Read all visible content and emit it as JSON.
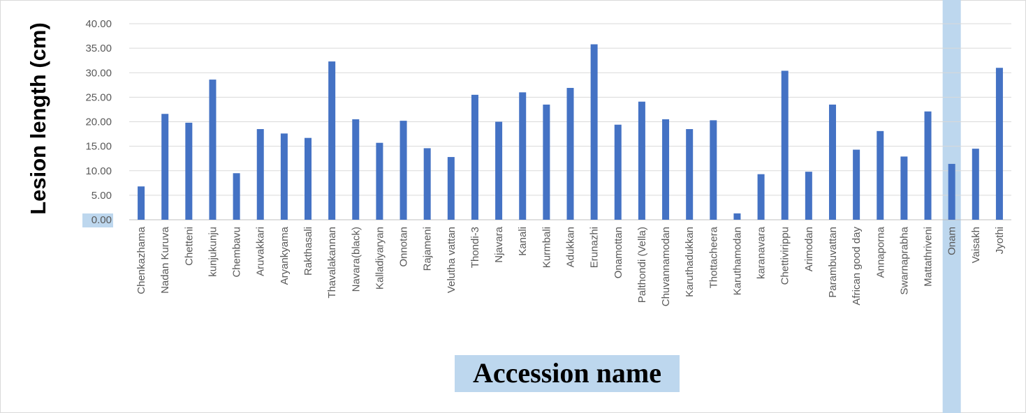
{
  "chart_data": {
    "type": "bar",
    "title": "",
    "xlabel": "Accession name",
    "ylabel": "Lesion length (cm)",
    "ylim": [
      0,
      40
    ],
    "ytick_step": 5,
    "ytick_labels": [
      "0.00",
      "5.00",
      "10.00",
      "15.00",
      "20.00",
      "25.00",
      "30.00",
      "35.00",
      "40.00"
    ],
    "grid": true,
    "legend": "none",
    "bar_color": "#4472C4",
    "highlight_color": "#BDD7EE",
    "highlighted_category": "Onam",
    "categories": [
      "Chenkazhama",
      "Nadan Kuruva",
      "Chetteni",
      "kunjukunju",
      "Chembavu",
      "Aruvakkari",
      "Aryankyama",
      "Rakthasali",
      "Thavalakannan",
      "Navara(black)",
      "Kalladiyaryan",
      "Onnotan",
      "Rajameni",
      "Velutha vattan",
      "Thondi-3",
      "Njavara",
      "Kanali",
      "Kurmbali",
      "Adukkan",
      "Erunazhi",
      "Onamottan",
      "Palthondi (Vella)",
      "Chuvannamodan",
      "Karuthadukkan",
      "Thottacheera",
      "Karuthamodan",
      "karanavara",
      "Chettivirippu",
      "Arimodan",
      "Parambuvattan",
      "African good day",
      "Annaporna",
      "Swarnaprabha",
      "Mattathriveni",
      "Onam",
      "Vaisakh",
      "Jyothi"
    ],
    "values": [
      6.8,
      21.6,
      19.8,
      28.6,
      9.5,
      18.5,
      17.6,
      16.7,
      32.3,
      20.5,
      15.7,
      20.2,
      14.6,
      12.8,
      25.5,
      20.0,
      26.0,
      23.5,
      26.9,
      35.8,
      19.4,
      24.1,
      20.5,
      18.5,
      20.3,
      1.3,
      9.3,
      30.4,
      9.8,
      23.5,
      14.3,
      18.1,
      12.9,
      22.1,
      11.4,
      14.5,
      31.0
    ]
  }
}
